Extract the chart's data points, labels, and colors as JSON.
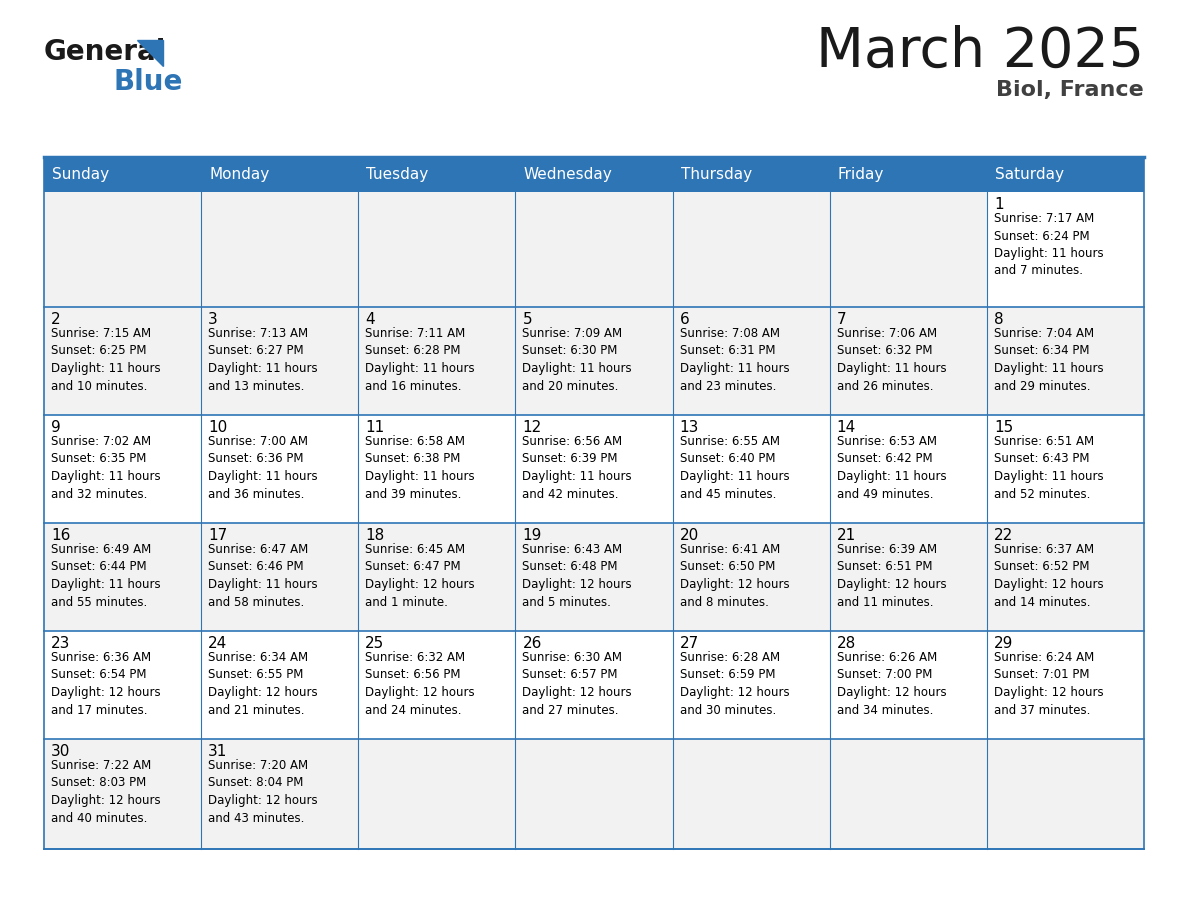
{
  "title": "March 2025",
  "subtitle": "Biol, France",
  "header_bg": "#2E75B6",
  "header_text": "#FFFFFF",
  "row_bg_light": "#F2F2F2",
  "row_bg_white": "#FFFFFF",
  "cell_text": "#000000",
  "border_color": "#2E75B6",
  "days_of_week": [
    "Sunday",
    "Monday",
    "Tuesday",
    "Wednesday",
    "Thursday",
    "Friday",
    "Saturday"
  ],
  "calendar_data": [
    [
      {
        "day": null,
        "info": null
      },
      {
        "day": null,
        "info": null
      },
      {
        "day": null,
        "info": null
      },
      {
        "day": null,
        "info": null
      },
      {
        "day": null,
        "info": null
      },
      {
        "day": null,
        "info": null
      },
      {
        "day": 1,
        "info": "Sunrise: 7:17 AM\nSunset: 6:24 PM\nDaylight: 11 hours\nand 7 minutes."
      }
    ],
    [
      {
        "day": 2,
        "info": "Sunrise: 7:15 AM\nSunset: 6:25 PM\nDaylight: 11 hours\nand 10 minutes."
      },
      {
        "day": 3,
        "info": "Sunrise: 7:13 AM\nSunset: 6:27 PM\nDaylight: 11 hours\nand 13 minutes."
      },
      {
        "day": 4,
        "info": "Sunrise: 7:11 AM\nSunset: 6:28 PM\nDaylight: 11 hours\nand 16 minutes."
      },
      {
        "day": 5,
        "info": "Sunrise: 7:09 AM\nSunset: 6:30 PM\nDaylight: 11 hours\nand 20 minutes."
      },
      {
        "day": 6,
        "info": "Sunrise: 7:08 AM\nSunset: 6:31 PM\nDaylight: 11 hours\nand 23 minutes."
      },
      {
        "day": 7,
        "info": "Sunrise: 7:06 AM\nSunset: 6:32 PM\nDaylight: 11 hours\nand 26 minutes."
      },
      {
        "day": 8,
        "info": "Sunrise: 7:04 AM\nSunset: 6:34 PM\nDaylight: 11 hours\nand 29 minutes."
      }
    ],
    [
      {
        "day": 9,
        "info": "Sunrise: 7:02 AM\nSunset: 6:35 PM\nDaylight: 11 hours\nand 32 minutes."
      },
      {
        "day": 10,
        "info": "Sunrise: 7:00 AM\nSunset: 6:36 PM\nDaylight: 11 hours\nand 36 minutes."
      },
      {
        "day": 11,
        "info": "Sunrise: 6:58 AM\nSunset: 6:38 PM\nDaylight: 11 hours\nand 39 minutes."
      },
      {
        "day": 12,
        "info": "Sunrise: 6:56 AM\nSunset: 6:39 PM\nDaylight: 11 hours\nand 42 minutes."
      },
      {
        "day": 13,
        "info": "Sunrise: 6:55 AM\nSunset: 6:40 PM\nDaylight: 11 hours\nand 45 minutes."
      },
      {
        "day": 14,
        "info": "Sunrise: 6:53 AM\nSunset: 6:42 PM\nDaylight: 11 hours\nand 49 minutes."
      },
      {
        "day": 15,
        "info": "Sunrise: 6:51 AM\nSunset: 6:43 PM\nDaylight: 11 hours\nand 52 minutes."
      }
    ],
    [
      {
        "day": 16,
        "info": "Sunrise: 6:49 AM\nSunset: 6:44 PM\nDaylight: 11 hours\nand 55 minutes."
      },
      {
        "day": 17,
        "info": "Sunrise: 6:47 AM\nSunset: 6:46 PM\nDaylight: 11 hours\nand 58 minutes."
      },
      {
        "day": 18,
        "info": "Sunrise: 6:45 AM\nSunset: 6:47 PM\nDaylight: 12 hours\nand 1 minute."
      },
      {
        "day": 19,
        "info": "Sunrise: 6:43 AM\nSunset: 6:48 PM\nDaylight: 12 hours\nand 5 minutes."
      },
      {
        "day": 20,
        "info": "Sunrise: 6:41 AM\nSunset: 6:50 PM\nDaylight: 12 hours\nand 8 minutes."
      },
      {
        "day": 21,
        "info": "Sunrise: 6:39 AM\nSunset: 6:51 PM\nDaylight: 12 hours\nand 11 minutes."
      },
      {
        "day": 22,
        "info": "Sunrise: 6:37 AM\nSunset: 6:52 PM\nDaylight: 12 hours\nand 14 minutes."
      }
    ],
    [
      {
        "day": 23,
        "info": "Sunrise: 6:36 AM\nSunset: 6:54 PM\nDaylight: 12 hours\nand 17 minutes."
      },
      {
        "day": 24,
        "info": "Sunrise: 6:34 AM\nSunset: 6:55 PM\nDaylight: 12 hours\nand 21 minutes."
      },
      {
        "day": 25,
        "info": "Sunrise: 6:32 AM\nSunset: 6:56 PM\nDaylight: 12 hours\nand 24 minutes."
      },
      {
        "day": 26,
        "info": "Sunrise: 6:30 AM\nSunset: 6:57 PM\nDaylight: 12 hours\nand 27 minutes."
      },
      {
        "day": 27,
        "info": "Sunrise: 6:28 AM\nSunset: 6:59 PM\nDaylight: 12 hours\nand 30 minutes."
      },
      {
        "day": 28,
        "info": "Sunrise: 6:26 AM\nSunset: 7:00 PM\nDaylight: 12 hours\nand 34 minutes."
      },
      {
        "day": 29,
        "info": "Sunrise: 6:24 AM\nSunset: 7:01 PM\nDaylight: 12 hours\nand 37 minutes."
      }
    ],
    [
      {
        "day": 30,
        "info": "Sunrise: 7:22 AM\nSunset: 8:03 PM\nDaylight: 12 hours\nand 40 minutes."
      },
      {
        "day": 31,
        "info": "Sunrise: 7:20 AM\nSunset: 8:04 PM\nDaylight: 12 hours\nand 43 minutes."
      },
      {
        "day": null,
        "info": null
      },
      {
        "day": null,
        "info": null
      },
      {
        "day": null,
        "info": null
      },
      {
        "day": null,
        "info": null
      },
      {
        "day": null,
        "info": null
      }
    ]
  ],
  "row_bg_pattern": [
    0,
    1,
    0,
    1,
    0,
    1
  ]
}
